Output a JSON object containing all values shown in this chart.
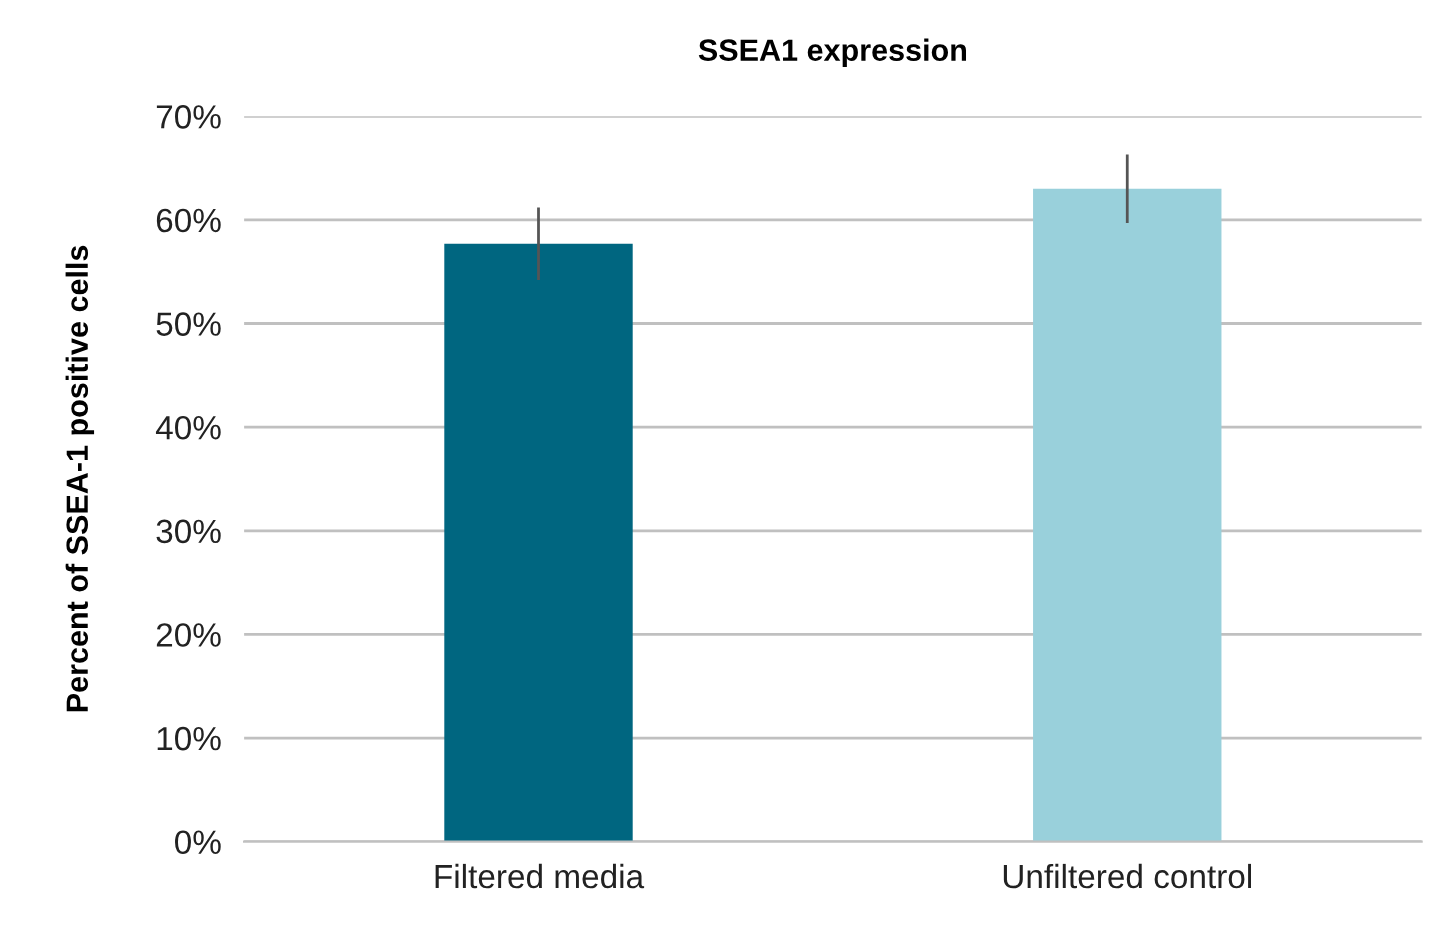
{
  "chart_data": {
    "type": "bar",
    "title": "SSEA1 expression",
    "ylabel": "Percent of SSEA-1 positive cells",
    "categories": [
      "Filtered media",
      "Unfiltered control"
    ],
    "values": [
      0.577,
      0.63
    ],
    "colors": [
      "#006680",
      "#99d0db"
    ],
    "errors": [
      0.035,
      0.033
    ],
    "ylim": [
      0,
      0.7
    ],
    "yticks": [
      {
        "value": 0,
        "label": "0%"
      },
      {
        "value": 0.1,
        "label": "10%"
      },
      {
        "value": 0.2,
        "label": "20%"
      },
      {
        "value": 0.3,
        "label": "30%"
      },
      {
        "value": 0.4,
        "label": "40%"
      },
      {
        "value": 0.5,
        "label": "50%"
      },
      {
        "value": 0.6,
        "label": "60%"
      },
      {
        "value": 0.7,
        "label": "70%"
      }
    ],
    "grid": "y"
  }
}
